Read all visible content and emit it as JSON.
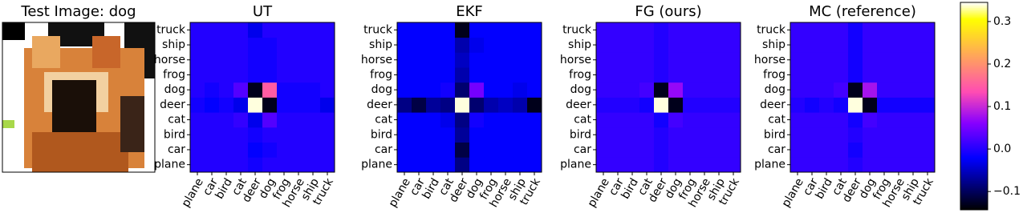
{
  "image_panel": {
    "title": "Test Image: dog"
  },
  "colorbar": {
    "colormap": "gnuplot2",
    "zlim": [
      -0.143,
      0.345
    ],
    "zticks": [
      {
        "value": -0.1,
        "label": "−0.1"
      },
      {
        "value": 0,
        "label": "0.0"
      },
      0.1,
      0.2,
      0.3
    ]
  },
  "chart_data": [
    {
      "type": "heatmap",
      "title": "UT",
      "x": [
        "plane",
        "car",
        "bird",
        "cat",
        "deer",
        "dog",
        "frog",
        "horse",
        "ship",
        "truck"
      ],
      "y": [
        "plane",
        "car",
        "bird",
        "cat",
        "deer",
        "dog",
        "frog",
        "horse",
        "ship",
        "truck"
      ],
      "z": [
        [
          0,
          0,
          0,
          0,
          -0.01,
          0,
          0,
          0,
          0,
          0
        ],
        [
          0,
          0,
          0,
          0,
          -0.02,
          -0.01,
          0,
          0,
          0,
          0
        ],
        [
          0,
          0,
          0,
          0,
          -0.01,
          0,
          0,
          0,
          0,
          0
        ],
        [
          0,
          0,
          0,
          0.01,
          -0.03,
          0.03,
          0,
          0,
          0,
          0
        ],
        [
          -0.01,
          -0.02,
          -0.01,
          -0.03,
          0.34,
          -0.13,
          -0.01,
          -0.01,
          -0.01,
          -0.03
        ],
        [
          0,
          -0.01,
          0,
          0.03,
          -0.13,
          0.15,
          -0.01,
          -0.01,
          -0.01,
          0
        ],
        [
          0,
          0,
          0,
          0,
          -0.01,
          -0.01,
          0,
          0,
          0,
          0
        ],
        [
          0,
          0,
          0,
          0,
          -0.01,
          -0.01,
          0,
          0,
          0,
          0
        ],
        [
          0,
          0,
          0,
          0,
          -0.01,
          -0.01,
          0,
          0,
          0,
          0
        ],
        [
          0,
          0,
          0,
          0,
          -0.03,
          0,
          0,
          0,
          0,
          0
        ]
      ]
    },
    {
      "type": "heatmap",
      "title": "EKF",
      "x": [
        "plane",
        "car",
        "bird",
        "cat",
        "deer",
        "dog",
        "frog",
        "horse",
        "ship",
        "truck"
      ],
      "y": [
        "plane",
        "car",
        "bird",
        "cat",
        "deer",
        "dog",
        "frog",
        "horse",
        "ship",
        "truck"
      ],
      "z": [
        [
          -0.02,
          -0.02,
          -0.02,
          -0.02,
          -0.08,
          -0.02,
          -0.02,
          -0.02,
          -0.02,
          -0.02
        ],
        [
          -0.02,
          -0.02,
          -0.02,
          -0.02,
          -0.11,
          -0.02,
          -0.02,
          -0.02,
          -0.02,
          -0.02
        ],
        [
          -0.02,
          -0.02,
          -0.02,
          -0.02,
          -0.07,
          -0.02,
          -0.02,
          -0.02,
          -0.02,
          -0.02
        ],
        [
          -0.02,
          -0.02,
          -0.02,
          -0.03,
          -0.08,
          -0.01,
          -0.02,
          -0.02,
          -0.02,
          -0.02
        ],
        [
          -0.08,
          -0.11,
          -0.07,
          -0.08,
          0.34,
          -0.09,
          -0.06,
          -0.05,
          -0.06,
          -0.13
        ],
        [
          -0.02,
          -0.02,
          -0.02,
          -0.01,
          -0.09,
          0.05,
          -0.02,
          -0.02,
          -0.03,
          -0.02
        ],
        [
          -0.02,
          -0.02,
          -0.02,
          -0.02,
          -0.06,
          -0.02,
          -0.02,
          -0.02,
          -0.02,
          -0.02
        ],
        [
          -0.02,
          -0.02,
          -0.02,
          -0.02,
          -0.05,
          -0.02,
          -0.02,
          -0.02,
          -0.02,
          -0.02
        ],
        [
          -0.02,
          -0.02,
          -0.02,
          -0.02,
          -0.06,
          -0.03,
          -0.02,
          -0.02,
          -0.02,
          -0.02
        ],
        [
          -0.02,
          -0.02,
          -0.02,
          -0.02,
          -0.13,
          -0.02,
          -0.02,
          -0.02,
          -0.02,
          -0.02
        ]
      ]
    },
    {
      "type": "heatmap",
      "title": "FG (ours)",
      "x": [
        "plane",
        "car",
        "bird",
        "cat",
        "deer",
        "dog",
        "frog",
        "horse",
        "ship",
        "truck"
      ],
      "y": [
        "plane",
        "car",
        "bird",
        "cat",
        "deer",
        "dog",
        "frog",
        "horse",
        "ship",
        "truck"
      ],
      "z": [
        [
          0.01,
          0.01,
          0.01,
          0.01,
          0,
          0.01,
          0.01,
          0.01,
          0.01,
          0.01
        ],
        [
          0.01,
          0.01,
          0.01,
          0.01,
          0,
          0.01,
          0.01,
          0.01,
          0.01,
          0.01
        ],
        [
          0.01,
          0.01,
          0.01,
          0.01,
          0,
          0.01,
          0.01,
          0.01,
          0.01,
          0.01
        ],
        [
          0.01,
          0.01,
          0.01,
          0.01,
          -0.01,
          0.02,
          0.01,
          0.01,
          0.01,
          0.01
        ],
        [
          0,
          0,
          0,
          -0.01,
          0.34,
          -0.13,
          0,
          0,
          0,
          0
        ],
        [
          0.01,
          0.01,
          0.01,
          0.02,
          -0.13,
          0.07,
          0.01,
          0.01,
          0.01,
          0.01
        ],
        [
          0.01,
          0.01,
          0.01,
          0.01,
          0,
          0.01,
          0.01,
          0.01,
          0.01,
          0.01
        ],
        [
          0.01,
          0.01,
          0.01,
          0.01,
          0,
          0.01,
          0.01,
          0.01,
          0.01,
          0.01
        ],
        [
          0.01,
          0.01,
          0.01,
          0.01,
          0,
          0.01,
          0.01,
          0.01,
          0.01,
          0.01
        ],
        [
          0.01,
          0.01,
          0.01,
          0.01,
          0,
          0.01,
          0.01,
          0.01,
          0.01,
          0.01
        ]
      ]
    },
    {
      "type": "heatmap",
      "title": "MC (reference)",
      "x": [
        "plane",
        "car",
        "bird",
        "cat",
        "deer",
        "dog",
        "frog",
        "horse",
        "ship",
        "truck"
      ],
      "y": [
        "plane",
        "car",
        "bird",
        "cat",
        "deer",
        "dog",
        "frog",
        "horse",
        "ship",
        "truck"
      ],
      "z": [
        [
          0.01,
          0.01,
          0.01,
          0.01,
          0,
          0.01,
          0.01,
          0.01,
          0.01,
          0.01
        ],
        [
          0.01,
          0.01,
          0.01,
          0.01,
          -0.01,
          0.01,
          0.01,
          0.01,
          0.01,
          0.01
        ],
        [
          0.01,
          0.01,
          0.01,
          0.01,
          0,
          0.01,
          0.01,
          0.01,
          0.01,
          0.01
        ],
        [
          0.01,
          0.01,
          0.01,
          0.01,
          -0.01,
          0.02,
          0.01,
          0.01,
          0.01,
          0.01
        ],
        [
          0,
          -0.01,
          0,
          -0.01,
          0.34,
          -0.13,
          -0.01,
          -0.01,
          -0.01,
          -0.01
        ],
        [
          0.01,
          0.01,
          0.01,
          0.02,
          -0.13,
          0.08,
          0.01,
          0.01,
          0.01,
          0.01
        ],
        [
          0.01,
          0.01,
          0.01,
          0.01,
          -0.01,
          0.01,
          0.01,
          0.01,
          0.01,
          0.01
        ],
        [
          0.01,
          0.01,
          0.01,
          0.01,
          -0.01,
          0.01,
          0.01,
          0.01,
          0.01,
          0.01
        ],
        [
          0.01,
          0.01,
          0.01,
          0.01,
          -0.01,
          0.01,
          0.01,
          0.01,
          0.01,
          0.01
        ],
        [
          0.01,
          0.01,
          0.01,
          0.01,
          -0.01,
          0.01,
          0.01,
          0.01,
          0.01,
          0.01
        ]
      ]
    }
  ]
}
